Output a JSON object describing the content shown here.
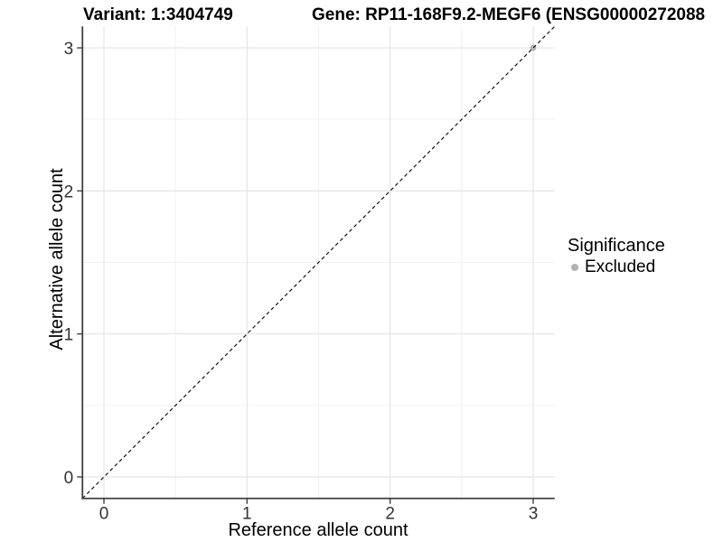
{
  "chart_data": {
    "type": "scatter",
    "title_variant": "Variant: 1:3404749",
    "title_gene": "Gene: RP11-168F9.2-MEGF6 (ENSG00000272088",
    "xlabel": "Reference allele count",
    "ylabel": "Alternative allele count",
    "xlim": [
      -0.15,
      3.15
    ],
    "ylim": [
      -0.15,
      3.15
    ],
    "x_ticks": [
      0,
      1,
      2,
      3
    ],
    "y_ticks": [
      0,
      1,
      2,
      3
    ],
    "minor_ticks_x": [
      0.5,
      1.5,
      2.5
    ],
    "minor_ticks_y": [
      0.5,
      1.5,
      2.5
    ],
    "points": [
      {
        "x": 3,
        "y": 3,
        "series": "Excluded"
      }
    ],
    "reference_line": {
      "slope": 1,
      "intercept": 0,
      "style": "dashed",
      "color": "#000000"
    },
    "legend": {
      "title": "Significance",
      "position": "right",
      "items": [
        {
          "label": "Excluded",
          "color": "#b3b3b3"
        }
      ]
    },
    "grid": "major+minor",
    "colors": {
      "grid_major": "#e5e5e5",
      "grid_minor": "#f0f0f0",
      "axis": "#404040",
      "tick_text": "#333333",
      "background": "#ffffff"
    }
  }
}
